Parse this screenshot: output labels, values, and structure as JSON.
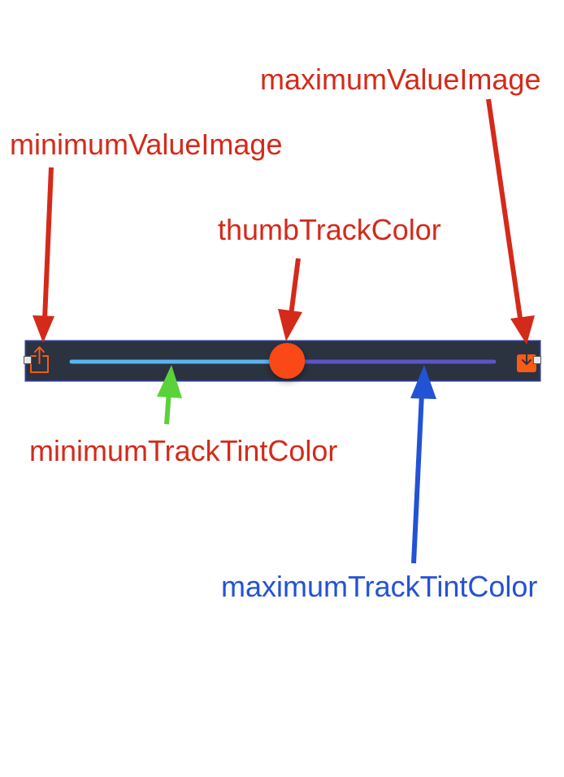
{
  "colors": {
    "label_red": "#d42a1a",
    "label_blue": "#2452d4",
    "arrow_red": "#d42a1a",
    "arrow_green": "#5ad23a",
    "arrow_blue": "#2452d4",
    "slider_background": "#2b3240",
    "slider_border": "#2a3a8c",
    "minimum_track": "#5ab4f0",
    "maximum_track": "#5a55c8",
    "thumb": "#fa4a14",
    "icon": "#fa5a14"
  },
  "labels": {
    "maximum_value_image": "maximumValueImage",
    "minimum_value_image": "minimumValueImage",
    "thumb_track_color": "thumbTrackColor",
    "minimum_track_tint_color": "minimumTrackTintColor",
    "maximum_track_tint_color": "maximumTrackTintColor"
  },
  "slider": {
    "value": 0.51,
    "minimum_value_icon": "share-upload-icon",
    "maximum_value_icon": "download-icon"
  }
}
